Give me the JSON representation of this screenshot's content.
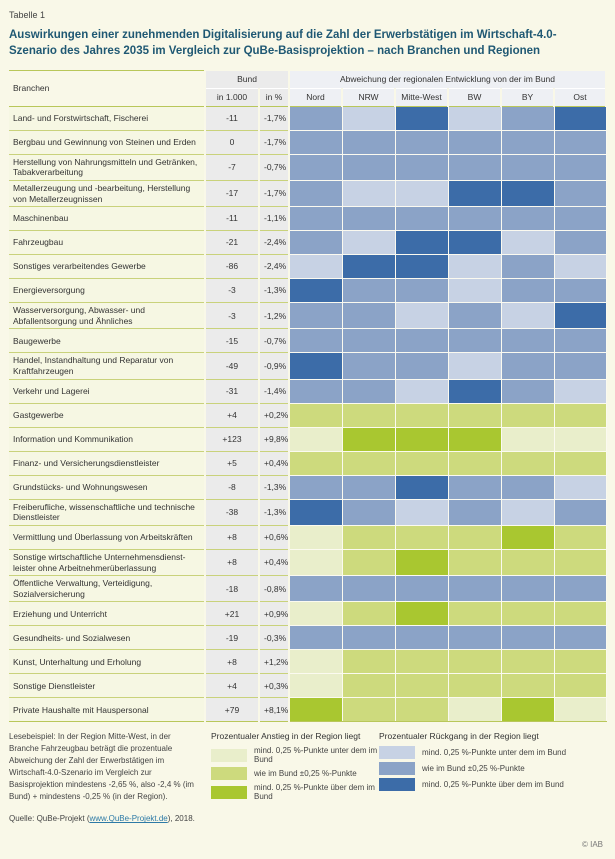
{
  "meta": {
    "table_label": "Tabelle 1",
    "title": "Auswirkungen einer zunehmenden Digitalisierung auf die Zahl der Erwerbstätigen im Wirtschaft-4.0-Szenario des Jahres 2035 im Vergleich zur QuBe-Basisprojektion – nach Branchen und Regionen",
    "copyright": "© IAB"
  },
  "colors": {
    "anstieg": {
      "unter": "#e9eecb",
      "wie": "#cdda7d",
      "ueber": "#a9c730"
    },
    "rueckgang": {
      "unter": "#c7d2e4",
      "wie": "#8ba3c7",
      "ueber": "#3c6ca8"
    }
  },
  "table_header": {
    "branchen": "Branchen",
    "bund_group": "Bund",
    "regional_group": "Abweichung der regionalen Entwicklung von der im Bund",
    "sub_in1000": "in 1.000",
    "sub_inpct": "in %"
  },
  "chart_data": {
    "type": "heatmap",
    "title": "Auswirkungen einer zunehmenden Digitalisierung auf die Zahl der Erwerbstätigen im Wirtschaft-4.0-Szenario des Jahres 2035 im Vergleich zur QuBe-Basisprojektion – nach Branchen und Regionen",
    "columns": [
      "Nord",
      "NRW",
      "Mitte-West",
      "BW",
      "BY",
      "Ost"
    ],
    "level_legend": "unter = mind. 0,25 %-Punkte unter dem im Bund; wie = wie im Bund ±0,25 %-Punkte; ueber = mind. 0,25 %-Punkte über dem im Bund",
    "rows": [
      {
        "branche": "Land- und Forstwirtschaft, Fischerei",
        "bund_in_1000": "-11",
        "bund_in_pct": "-1,7%",
        "richtung": "rueckgang",
        "regional": [
          "wie",
          "unter",
          "ueber",
          "unter",
          "wie",
          "ueber"
        ]
      },
      {
        "branche": "Bergbau und Gewinnung von Steinen und Erden",
        "bund_in_1000": "0",
        "bund_in_pct": "-1,7%",
        "richtung": "rueckgang",
        "regional": [
          "wie",
          "wie",
          "wie",
          "wie",
          "wie",
          "wie"
        ]
      },
      {
        "branche": "Herstellung von Nahrungsmitteln und Getränken, Tabakverarbeitung",
        "bund_in_1000": "-7",
        "bund_in_pct": "-0,7%",
        "richtung": "rueckgang",
        "regional": [
          "wie",
          "wie",
          "wie",
          "wie",
          "wie",
          "wie"
        ]
      },
      {
        "branche": "Metallerzeugung und -bearbeitung, Herstellung von Metallerzeugnissen",
        "bund_in_1000": "-17",
        "bund_in_pct": "-1,7%",
        "richtung": "rueckgang",
        "regional": [
          "wie",
          "unter",
          "unter",
          "ueber",
          "ueber",
          "wie"
        ]
      },
      {
        "branche": "Maschinenbau",
        "bund_in_1000": "-11",
        "bund_in_pct": "-1,1%",
        "richtung": "rueckgang",
        "regional": [
          "wie",
          "wie",
          "wie",
          "wie",
          "wie",
          "wie"
        ]
      },
      {
        "branche": "Fahrzeugbau",
        "bund_in_1000": "-21",
        "bund_in_pct": "-2,4%",
        "richtung": "rueckgang",
        "regional": [
          "wie",
          "unter",
          "ueber",
          "ueber",
          "unter",
          "wie"
        ]
      },
      {
        "branche": "Sonstiges verarbeitendes Gewerbe",
        "bund_in_1000": "-86",
        "bund_in_pct": "-2,4%",
        "richtung": "rueckgang",
        "regional": [
          "unter",
          "ueber",
          "ueber",
          "unter",
          "wie",
          "unter"
        ]
      },
      {
        "branche": "Energieversorgung",
        "bund_in_1000": "-3",
        "bund_in_pct": "-1,3%",
        "richtung": "rueckgang",
        "regional": [
          "ueber",
          "wie",
          "wie",
          "unter",
          "wie",
          "wie"
        ]
      },
      {
        "branche": "Wasserversorgung, Abwasser- und Abfallentsorgung und Ähnliches",
        "bund_in_1000": "-3",
        "bund_in_pct": "-1,2%",
        "richtung": "rueckgang",
        "regional": [
          "wie",
          "wie",
          "unter",
          "wie",
          "unter",
          "ueber"
        ]
      },
      {
        "branche": "Baugewerbe",
        "bund_in_1000": "-15",
        "bund_in_pct": "-0,7%",
        "richtung": "rueckgang",
        "regional": [
          "wie",
          "wie",
          "wie",
          "wie",
          "wie",
          "wie"
        ]
      },
      {
        "branche": "Handel, Instandhaltung und Reparatur von Kraftfahrzeugen",
        "bund_in_1000": "-49",
        "bund_in_pct": "-0,9%",
        "richtung": "rueckgang",
        "regional": [
          "ueber",
          "wie",
          "wie",
          "unter",
          "wie",
          "wie"
        ]
      },
      {
        "branche": "Verkehr und Lagerei",
        "bund_in_1000": "-31",
        "bund_in_pct": "-1,4%",
        "richtung": "rueckgang",
        "regional": [
          "wie",
          "wie",
          "unter",
          "ueber",
          "wie",
          "unter"
        ]
      },
      {
        "branche": "Gastgewerbe",
        "bund_in_1000": "+4",
        "bund_in_pct": "+0,2%",
        "richtung": "anstieg",
        "regional": [
          "wie",
          "wie",
          "wie",
          "wie",
          "wie",
          "wie"
        ]
      },
      {
        "branche": "Information und Kommunikation",
        "bund_in_1000": "+123",
        "bund_in_pct": "+9,8%",
        "richtung": "anstieg",
        "regional": [
          "unter",
          "ueber",
          "ueber",
          "ueber",
          "unter",
          "unter"
        ]
      },
      {
        "branche": "Finanz- und Versicherungsdienstleister",
        "bund_in_1000": "+5",
        "bund_in_pct": "+0,4%",
        "richtung": "anstieg",
        "regional": [
          "wie",
          "wie",
          "wie",
          "wie",
          "wie",
          "wie"
        ]
      },
      {
        "branche": "Grundstücks- und Wohnungswesen",
        "bund_in_1000": "-8",
        "bund_in_pct": "-1,3%",
        "richtung": "rueckgang",
        "regional": [
          "wie",
          "wie",
          "ueber",
          "wie",
          "wie",
          "unter"
        ]
      },
      {
        "branche": "Freiberufliche, wissenschaftliche und technische Dienstleister",
        "bund_in_1000": "-38",
        "bund_in_pct": "-1,3%",
        "richtung": "rueckgang",
        "regional": [
          "ueber",
          "wie",
          "unter",
          "wie",
          "unter",
          "wie"
        ]
      },
      {
        "branche": "Vermittlung und Überlassung von Arbeitskräften",
        "bund_in_1000": "+8",
        "bund_in_pct": "+0,6%",
        "richtung": "anstieg",
        "regional": [
          "unter",
          "wie",
          "wie",
          "wie",
          "ueber",
          "wie"
        ]
      },
      {
        "branche": "Sonstige wirtschaftliche Unternehmensdienst­leister ohne Arbeitnehmerüberlassung",
        "bund_in_1000": "+8",
        "bund_in_pct": "+0,4%",
        "richtung": "anstieg",
        "regional": [
          "unter",
          "wie",
          "ueber",
          "wie",
          "wie",
          "wie"
        ]
      },
      {
        "branche": "Öffentliche Verwaltung, Verteidigung, Sozialversicherung",
        "bund_in_1000": "-18",
        "bund_in_pct": "-0,8%",
        "richtung": "rueckgang",
        "regional": [
          "wie",
          "wie",
          "wie",
          "wie",
          "wie",
          "wie"
        ]
      },
      {
        "branche": "Erziehung und Unterricht",
        "bund_in_1000": "+21",
        "bund_in_pct": "+0,9%",
        "richtung": "anstieg",
        "regional": [
          "unter",
          "wie",
          "ueber",
          "wie",
          "wie",
          "wie"
        ]
      },
      {
        "branche": "Gesundheits- und Sozialwesen",
        "bund_in_1000": "-19",
        "bund_in_pct": "-0,3%",
        "richtung": "rueckgang",
        "regional": [
          "wie",
          "wie",
          "wie",
          "wie",
          "wie",
          "wie"
        ]
      },
      {
        "branche": "Kunst, Unterhaltung und Erholung",
        "bund_in_1000": "+8",
        "bund_in_pct": "+1,2%",
        "richtung": "anstieg",
        "regional": [
          "unter",
          "wie",
          "wie",
          "wie",
          "wie",
          "wie"
        ]
      },
      {
        "branche": "Sonstige Dienstleister",
        "bund_in_1000": "+4",
        "bund_in_pct": "+0,3%",
        "richtung": "anstieg",
        "regional": [
          "unter",
          "wie",
          "wie",
          "wie",
          "wie",
          "wie"
        ]
      },
      {
        "branche": "Private Haushalte mit Hauspersonal",
        "bund_in_1000": "+79",
        "bund_in_pct": "+8,1%",
        "richtung": "anstieg",
        "regional": [
          "ueber",
          "wie",
          "wie",
          "unter",
          "ueber",
          "unter"
        ]
      }
    ]
  },
  "legend": {
    "anstieg_title": "Prozentualer Anstieg in der Region liegt",
    "rueckgang_title": "Prozentualer Rückgang in der Region liegt",
    "items": [
      {
        "level": "unter",
        "label": "mind. 0,25 %-Punkte unter dem im Bund"
      },
      {
        "level": "wie",
        "label": "wie im Bund ±0,25 %-Punkte"
      },
      {
        "level": "ueber",
        "label": "mind. 0,25 %-Punkte über dem im Bund"
      }
    ]
  },
  "footer": {
    "lesebeispiel": "Lesebeispiel: In der Region Mitte-West, in der Branche Fahrzeugbau beträgt die prozentuale Abweichung der Zahl der Erwerbstätigen im Wirtschaft-4.0-Szenario im Vergleich zur Basisprojektion mindestens -2,65 %, also -2,4 % (im Bund) + mindestens -0,25 % (in der Region).",
    "quelle_prefix": "Quelle: QuBe-Projekt (",
    "quelle_link": "www.QuBe-Projekt.de",
    "quelle_suffix": "), 2018."
  }
}
